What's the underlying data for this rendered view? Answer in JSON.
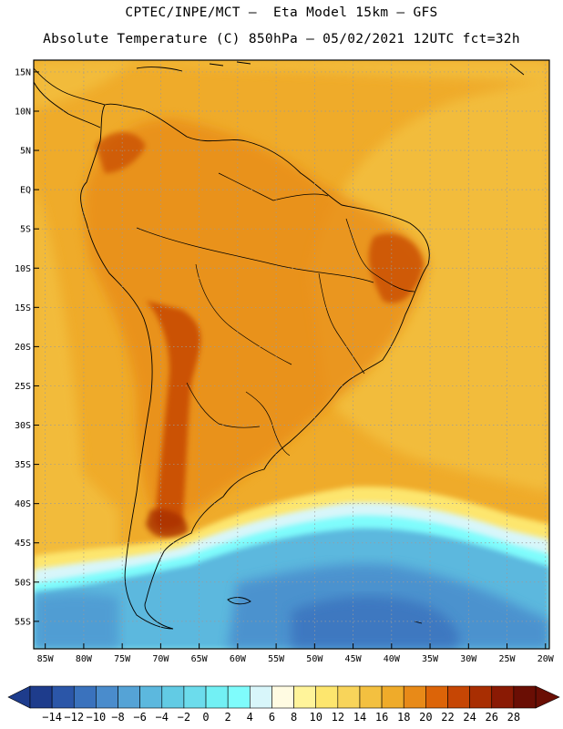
{
  "header": {
    "line1": "CPTEC/INPE/MCT –  Eta Model 15km – GFS",
    "line2": "Absolute Temperature (C) 850hPa – 05/02/2021 12UTC fct=32h"
  },
  "axes": {
    "lat_labels": [
      "15N",
      "10N",
      "5N",
      "EQ",
      "5S",
      "10S",
      "15S",
      "20S",
      "25S",
      "30S",
      "35S",
      "40S",
      "45S",
      "50S",
      "55S"
    ],
    "lat_values": [
      15,
      10,
      5,
      0,
      -5,
      -10,
      -15,
      -20,
      -25,
      -30,
      -35,
      -40,
      -45,
      -50,
      -55
    ],
    "lon_labels": [
      "85W",
      "80W",
      "75W",
      "70W",
      "65W",
      "60W",
      "55W",
      "50W",
      "45W",
      "40W",
      "35W",
      "30W",
      "25W",
      "20W"
    ],
    "lon_values": [
      -85,
      -80,
      -75,
      -70,
      -65,
      -60,
      -55,
      -50,
      -45,
      -40,
      -35,
      -30,
      -25,
      -20
    ],
    "lon_range": [
      -86.5,
      -19.5
    ],
    "lat_range": [
      -58.5,
      16.5
    ]
  },
  "legend": {
    "labels": [
      "−14",
      "−12",
      "−10",
      "−8",
      "−6",
      "−4",
      "−2",
      "0",
      "2",
      "4",
      "6",
      "8",
      "10",
      "12",
      "14",
      "16",
      "18",
      "20",
      "22",
      "24",
      "26",
      "28"
    ],
    "colors": [
      "#1e3c8c",
      "#2b56a8",
      "#3a72bd",
      "#4a8ccc",
      "#55a3d6",
      "#5cb8de",
      "#62cbe4",
      "#6cdcec",
      "#72f0f4",
      "#7ffcfc",
      "#d8f6fa",
      "#fffbe2",
      "#fff49a",
      "#fde66e",
      "#f8d45a",
      "#f3c040",
      "#efab2a",
      "#e88a18",
      "#dc6408",
      "#c64604",
      "#a82e02",
      "#8a1a04",
      "#6a0e04"
    ],
    "unit": "C"
  },
  "colors": {
    "warm_base": "#efab2a",
    "ocean_warm": "#f3c040",
    "hot": "#e88a18",
    "very_hot": "#c64604",
    "cold": "#4a8ccc"
  }
}
